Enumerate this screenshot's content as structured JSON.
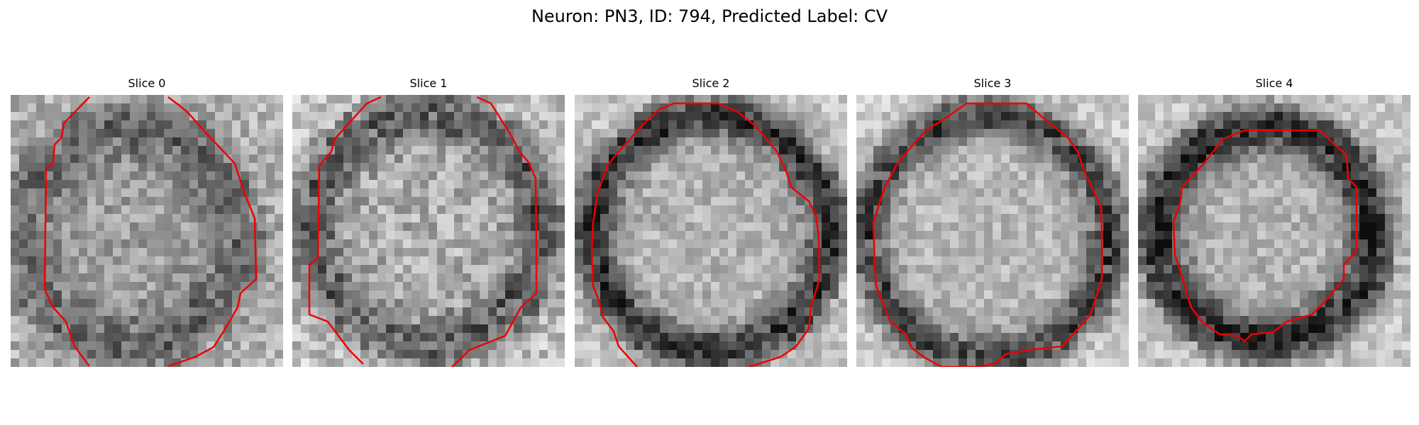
{
  "figure": {
    "title": "Neuron: PN3, ID: 794, Predicted Label: CV"
  },
  "panels": [
    {
      "title": "Slice 0"
    },
    {
      "title": "Slice 1"
    },
    {
      "title": "Slice 2"
    },
    {
      "title": "Slice 3"
    },
    {
      "title": "Slice 4"
    }
  ],
  "colors": {
    "contour": "#ee0000",
    "background": "#ffffff"
  },
  "image_content": "grayscale electron-microscopy crops of a round vesicle with a dark membrane ring and a red segmentation contour"
}
